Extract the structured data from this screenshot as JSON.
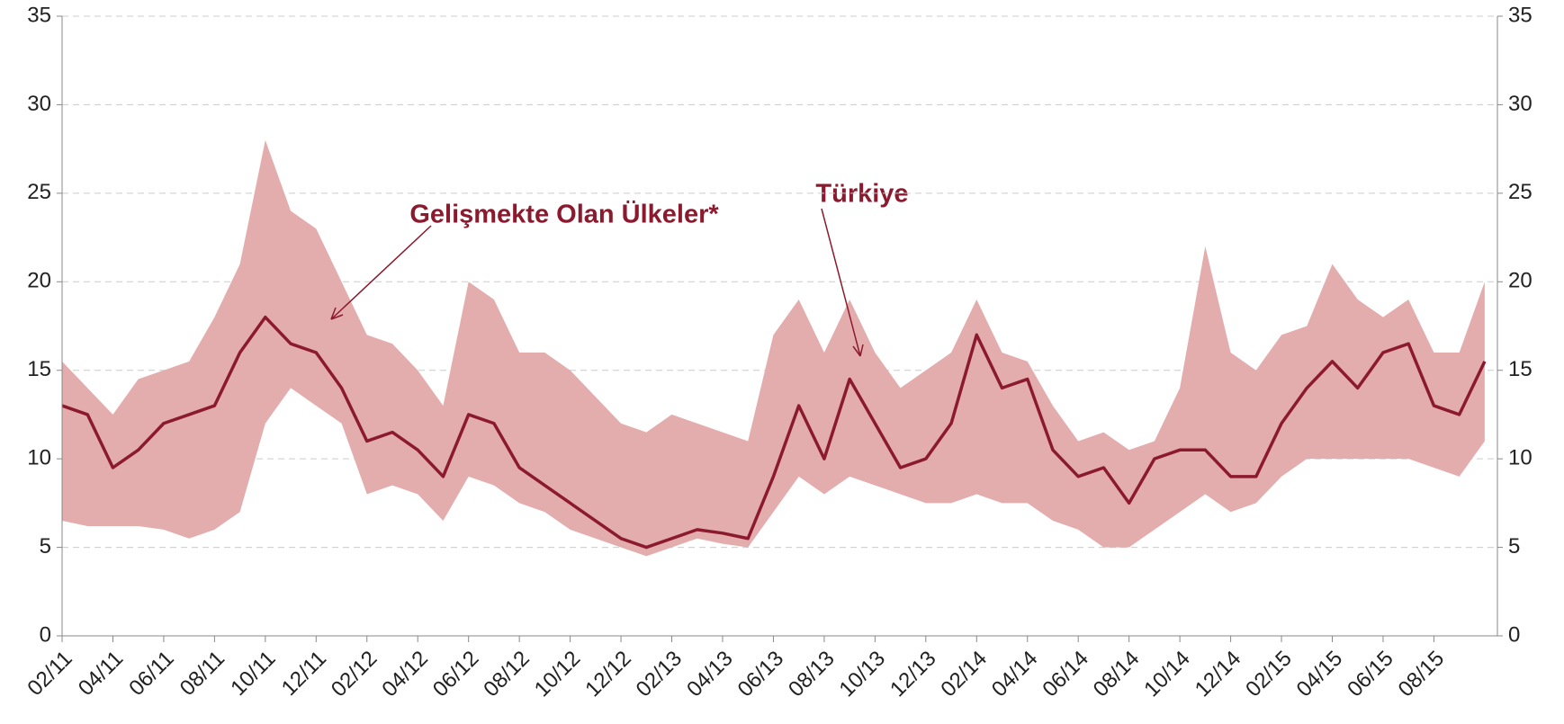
{
  "chart_data": {
    "type": "band-line",
    "categories": [
      "02/11",
      null,
      "04/11",
      null,
      "06/11",
      null,
      "08/11",
      null,
      "10/11",
      null,
      "12/11",
      null,
      "02/12",
      null,
      "04/12",
      null,
      "06/12",
      null,
      "08/12",
      null,
      "10/12",
      null,
      "12/12",
      null,
      "02/13",
      null,
      "04/13",
      null,
      "06/13",
      null,
      "08/13",
      null,
      "10/13",
      null,
      "12/13",
      null,
      "02/14",
      null,
      "04/14",
      null,
      "06/14",
      null,
      "08/14",
      null,
      "10/14",
      null,
      "12/14",
      null,
      "02/15",
      null,
      "04/15",
      null,
      "06/15",
      null,
      "08/15",
      null,
      null
    ],
    "series": [
      {
        "name": "Gelişmekte Olan Ülkeler*",
        "color": "#e4adad",
        "low": [
          6.5,
          6.2,
          6.2,
          6.2,
          6,
          5.5,
          6,
          7,
          12,
          14,
          13,
          12,
          8,
          8.5,
          8,
          6.5,
          9,
          8.5,
          7.5,
          7,
          6,
          5.5,
          5,
          4.5,
          5,
          5.5,
          5.2,
          5,
          7,
          9,
          8,
          9,
          8.5,
          8,
          7.5,
          7.5,
          8,
          7.5,
          7.5,
          6.5,
          6,
          5,
          5,
          6,
          7,
          8,
          7,
          7.5,
          9,
          10,
          10,
          10,
          10,
          10,
          9.5,
          9,
          11
        ],
        "high": [
          15.5,
          14,
          12.5,
          14.5,
          15,
          15.5,
          18,
          21,
          28,
          24,
          23,
          20,
          17,
          16.5,
          15,
          13,
          20,
          19,
          16,
          16,
          15,
          13.5,
          12,
          11.5,
          12.5,
          12,
          11.5,
          11,
          17,
          19,
          16,
          19,
          16,
          14,
          15,
          16,
          19,
          16,
          15.5,
          13,
          11,
          11.5,
          10.5,
          11,
          14,
          22,
          16,
          15,
          17,
          17.5,
          21,
          19,
          18,
          19,
          16,
          16,
          20
        ]
      },
      {
        "name": "Türkiye",
        "color": "#8b1a2e",
        "values": [
          13,
          12.5,
          9.5,
          10.5,
          12,
          12.5,
          13,
          16,
          18,
          16.5,
          16,
          14,
          11,
          11.5,
          10.5,
          9,
          12.5,
          12,
          9.5,
          8.5,
          7.5,
          6.5,
          5.5,
          5,
          5.5,
          6,
          5.8,
          5.5,
          9,
          13,
          10,
          14.5,
          12,
          9.5,
          10,
          12,
          17,
          14,
          14.5,
          10.5,
          9,
          9.5,
          7.5,
          10,
          10.5,
          10.5,
          9,
          9,
          12,
          14,
          15.5,
          14,
          16,
          16.5,
          13,
          12.5,
          15.5
        ]
      }
    ],
    "ylim": [
      0,
      35
    ],
    "yticks": [
      0,
      5,
      10,
      15,
      20,
      25,
      30,
      35
    ],
    "grid": true
  }
}
